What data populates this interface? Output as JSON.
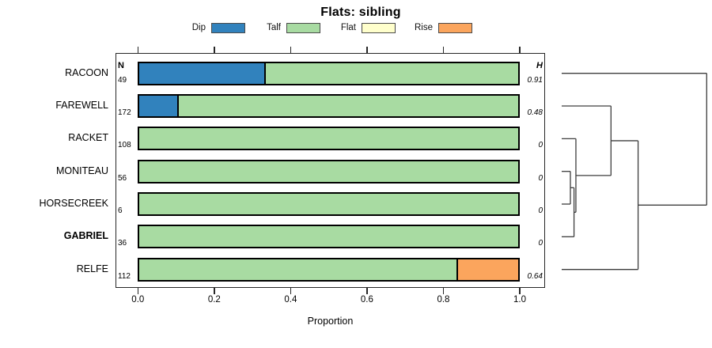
{
  "title": "Flats: sibling",
  "legend": [
    {
      "label": "Dip",
      "color": "#3182BD"
    },
    {
      "label": "Talf",
      "color": "#A8DBA2"
    },
    {
      "label": "Flat",
      "color": "#FFFFCC"
    },
    {
      "label": "Rise",
      "color": "#FBA55D"
    }
  ],
  "columns": {
    "n_header": "N",
    "h_header": "H"
  },
  "chart_data": {
    "type": "bar",
    "subtype": "stacked-horizontal-proportion",
    "title": "Flats: sibling",
    "xlabel": "Proportion",
    "xlim": [
      0,
      1
    ],
    "x_ticks": [
      "0.0",
      "0.2",
      "0.4",
      "0.6",
      "0.8",
      "1.0"
    ],
    "categories": [
      "Dip",
      "Talf",
      "Flat",
      "Rise"
    ],
    "colors": {
      "Dip": "#3182BD",
      "Talf": "#A8DBA2",
      "Flat": "#FFFFCC",
      "Rise": "#FBA55D"
    },
    "rows": [
      {
        "label": "RACOON",
        "bold": false,
        "n": "49",
        "h": "0.91",
        "segments": [
          {
            "category": "Dip",
            "value": 0.33
          },
          {
            "category": "Talf",
            "value": 0.67
          }
        ]
      },
      {
        "label": "FAREWELL",
        "bold": false,
        "n": "172",
        "h": "0.48",
        "segments": [
          {
            "category": "Dip",
            "value": 0.1
          },
          {
            "category": "Talf",
            "value": 0.9
          }
        ]
      },
      {
        "label": "RACKET",
        "bold": false,
        "n": "108",
        "h": "0",
        "segments": [
          {
            "category": "Talf",
            "value": 1.0
          }
        ]
      },
      {
        "label": "MONITEAU",
        "bold": false,
        "n": "56",
        "h": "0",
        "segments": [
          {
            "category": "Talf",
            "value": 1.0
          }
        ]
      },
      {
        "label": "HORSECREEK",
        "bold": false,
        "n": "6",
        "h": "0",
        "segments": [
          {
            "category": "Talf",
            "value": 1.0
          }
        ]
      },
      {
        "label": "GABRIEL",
        "bold": true,
        "n": "36",
        "h": "0",
        "segments": [
          {
            "category": "Talf",
            "value": 1.0
          }
        ]
      },
      {
        "label": "RELFE",
        "bold": false,
        "n": "112",
        "h": "0.64",
        "segments": [
          {
            "category": "Talf",
            "value": 0.84
          },
          {
            "category": "Rise",
            "value": 0.16
          }
        ]
      }
    ],
    "dendrogram": {
      "leaf_order": [
        "RACOON",
        "FAREWELL",
        "RACKET",
        "MONITEAU",
        "HORSECREEK",
        "GABRIEL",
        "RELFE"
      ],
      "merges": [
        {
          "id": "M1",
          "a": "MONITEAU",
          "b": "HORSECREEK",
          "height": 0.06
        },
        {
          "id": "M2",
          "a": "M1",
          "b": "GABRIEL",
          "height": 0.085
        },
        {
          "id": "M3",
          "a": "RACKET",
          "b": "M2",
          "height": 0.098
        },
        {
          "id": "M4",
          "a": "FAREWELL",
          "b": "M3",
          "height": 0.34
        },
        {
          "id": "M5",
          "a": "M4",
          "b": "RELFE",
          "height": 0.527
        },
        {
          "id": "M6",
          "a": "RACOON",
          "b": "M5",
          "height": 1.0
        }
      ]
    }
  }
}
